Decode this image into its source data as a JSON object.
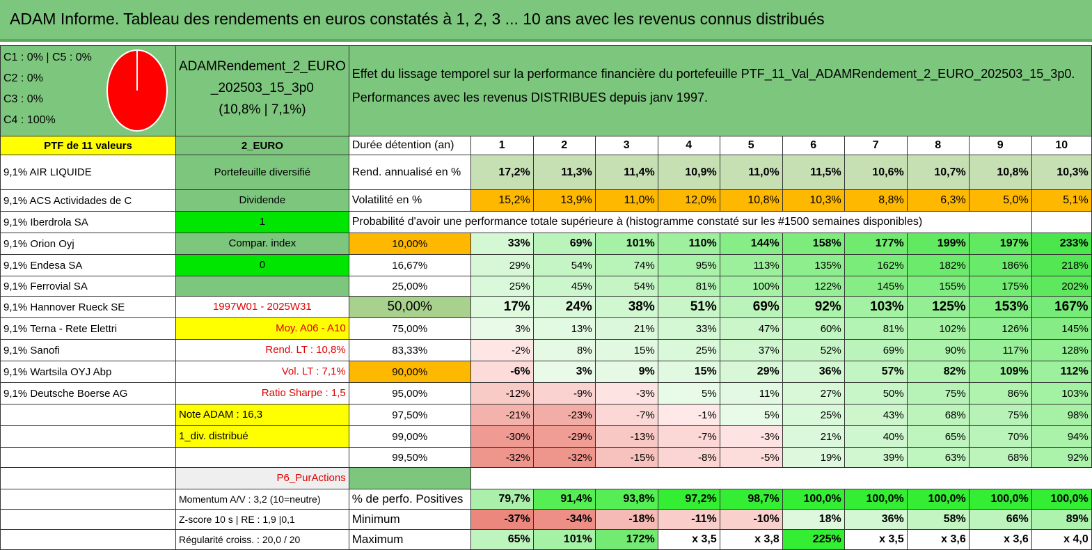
{
  "title": "ADAM Informe. Tableau des rendements en euros constatés à 1, 2, 3 ... 10 ans avec les revenus connus distribués",
  "composition": {
    "c1c5": "C1 : 0% | C5 : 0%",
    "c2": "C2 : 0%",
    "c3": "C3 : 0%",
    "c4": "C4 : 100%",
    "pie_color": "#ff0000"
  },
  "portfolio": {
    "name_a": "ADAMRendement_2_EURO",
    "name_b": "_202503_15_3p0",
    "stats": "(10,8% | 7,1%)"
  },
  "header": {
    "line1": "Effet du lissage temporel sur la performance financière du portefeuille PTF_11_Val_ADAMRendement_2_EURO_202503_15_3p0.",
    "line2": "Performances avec les revenus DISTRIBUES depuis janv 1997."
  },
  "labels": {
    "ptf": "PTF de 11 valeurs",
    "euro": "2_EURO",
    "duree": "Durée détention (an)",
    "rend": "Rend. annualisé en %",
    "vol": "Volatilité en %",
    "prob": "Probabilité d'avoir une performance totale supérieure à (histogramme constaté sur les #1500 semaines disponibles)",
    "pct_pos": "% de perfo. Positives",
    "min": "Minimum",
    "max": "Maximum"
  },
  "years": [
    "1",
    "2",
    "3",
    "4",
    "5",
    "6",
    "7",
    "8",
    "9",
    "10"
  ],
  "stocks": [
    "9,1% AIR LIQUIDE",
    "9,1% ACS Actividades de C",
    "9,1% Iberdrola SA",
    "9,1% Orion Oyj",
    "9,1% Endesa SA",
    "9,1% Ferrovial SA",
    "9,1% Hannover Rueck SE",
    "9,1% Terna - Rete Elettri",
    "9,1% Sanofi",
    "9,1% Wartsila OYJ Abp",
    "9,1% Deutsche Boerse AG"
  ],
  "side": {
    "diversifie": "Portefeuille diversifié",
    "dividende": "Dividende",
    "one": "1",
    "compar": "Compar. index",
    "zero": "0",
    "period": "1997W01 - 2025W31",
    "moy": "Moy. A06 - A10",
    "rend_lt": "Rend. LT : 10,8%",
    "vol_lt": "Vol. LT : 7,1%",
    "sharpe": "Ratio Sharpe : 1,5",
    "note": "Note ADAM : 16,3",
    "div": "1_div. distribué",
    "p6": "P6_PurActions",
    "momentum": "Momentum A/V : 3,2 (10=neutre)",
    "zscore": "Z-score 10 s | RE : 1,9 |0,1",
    "regularite": "Régularité croiss. : 20,0 / 20"
  },
  "rend": [
    "17,2%",
    "11,3%",
    "11,4%",
    "10,9%",
    "11,0%",
    "11,5%",
    "10,6%",
    "10,7%",
    "10,8%",
    "10,3%"
  ],
  "vol": [
    "15,2%",
    "13,9%",
    "11,0%",
    "12,0%",
    "10,8%",
    "10,3%",
    "8,8%",
    "6,3%",
    "5,0%",
    "5,1%"
  ],
  "prob_rows": [
    {
      "p": "10,00%",
      "v": [
        "33%",
        "69%",
        "101%",
        "110%",
        "144%",
        "158%",
        "177%",
        "199%",
        "197%",
        "233%"
      ]
    },
    {
      "p": "16,67%",
      "v": [
        "29%",
        "54%",
        "74%",
        "95%",
        "113%",
        "135%",
        "162%",
        "182%",
        "186%",
        "218%"
      ]
    },
    {
      "p": "25,00%",
      "v": [
        "25%",
        "45%",
        "54%",
        "81%",
        "100%",
        "122%",
        "145%",
        "155%",
        "175%",
        "202%"
      ]
    },
    {
      "p": "50,00%",
      "v": [
        "17%",
        "24%",
        "38%",
        "51%",
        "69%",
        "92%",
        "103%",
        "125%",
        "153%",
        "167%"
      ]
    },
    {
      "p": "75,00%",
      "v": [
        "3%",
        "13%",
        "21%",
        "33%",
        "47%",
        "60%",
        "81%",
        "102%",
        "126%",
        "145%"
      ]
    },
    {
      "p": "83,33%",
      "v": [
        "-2%",
        "8%",
        "15%",
        "25%",
        "37%",
        "52%",
        "69%",
        "90%",
        "117%",
        "128%"
      ]
    },
    {
      "p": "90,00%",
      "v": [
        "-6%",
        "3%",
        "9%",
        "15%",
        "29%",
        "36%",
        "57%",
        "82%",
        "109%",
        "112%"
      ]
    },
    {
      "p": "95,00%",
      "v": [
        "-12%",
        "-9%",
        "-3%",
        "5%",
        "11%",
        "27%",
        "50%",
        "75%",
        "86%",
        "103%"
      ]
    },
    {
      "p": "97,50%",
      "v": [
        "-21%",
        "-23%",
        "-7%",
        "-1%",
        "5%",
        "25%",
        "43%",
        "68%",
        "75%",
        "98%"
      ]
    },
    {
      "p": "99,00%",
      "v": [
        "-30%",
        "-29%",
        "-13%",
        "-7%",
        "-3%",
        "21%",
        "40%",
        "65%",
        "70%",
        "94%"
      ]
    },
    {
      "p": "99,50%",
      "v": [
        "-32%",
        "-32%",
        "-15%",
        "-8%",
        "-5%",
        "19%",
        "39%",
        "63%",
        "68%",
        "92%"
      ]
    }
  ],
  "pct_pos": [
    "79,7%",
    "91,4%",
    "93,8%",
    "97,2%",
    "98,7%",
    "100,0%",
    "100,0%",
    "100,0%",
    "100,0%",
    "100,0%"
  ],
  "minimum": [
    "-37%",
    "-34%",
    "-18%",
    "-11%",
    "-10%",
    "18%",
    "36%",
    "58%",
    "66%",
    "89%"
  ],
  "maximum": [
    "65%",
    "101%",
    "172%",
    "x 3,5",
    "x 3,8",
    "225%",
    "x 3,5",
    "x 3,6",
    "x 3,6",
    "x 4,0"
  ]
}
